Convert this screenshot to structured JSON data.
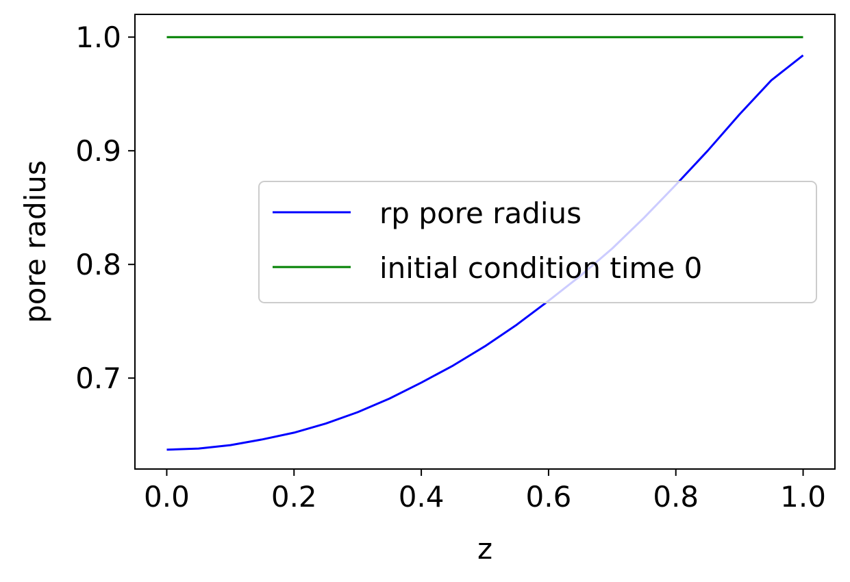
{
  "chart_data": {
    "type": "line",
    "title": "",
    "xlabel": "z",
    "ylabel": "pore radius",
    "xlim": [
      -0.05,
      1.05
    ],
    "ylim": [
      0.62,
      1.02
    ],
    "xticks": [
      0.0,
      0.2,
      0.4,
      0.6,
      0.8,
      1.0
    ],
    "xtick_labels": [
      "0.0",
      "0.2",
      "0.4",
      "0.6",
      "0.8",
      "1.0"
    ],
    "yticks": [
      0.7,
      0.8,
      0.9,
      1.0
    ],
    "ytick_labels": [
      "0.7",
      "0.8",
      "0.9",
      "1.0"
    ],
    "grid": false,
    "legend_position": "center-right",
    "series": [
      {
        "name": "rp pore radius",
        "color": "#0000ff",
        "x": [
          0.0,
          0.05,
          0.1,
          0.15,
          0.2,
          0.25,
          0.3,
          0.35,
          0.4,
          0.45,
          0.5,
          0.55,
          0.6,
          0.65,
          0.7,
          0.75,
          0.8,
          0.85,
          0.9,
          0.95,
          1.0
        ],
        "y": [
          0.637,
          0.638,
          0.641,
          0.646,
          0.652,
          0.66,
          0.67,
          0.682,
          0.696,
          0.711,
          0.728,
          0.747,
          0.768,
          0.79,
          0.814,
          0.841,
          0.87,
          0.9,
          0.932,
          0.962,
          0.984
        ]
      },
      {
        "name": "initial condition time 0",
        "color": "#008000",
        "x": [
          0.0,
          1.0
        ],
        "y": [
          1.0,
          1.0
        ]
      }
    ]
  }
}
